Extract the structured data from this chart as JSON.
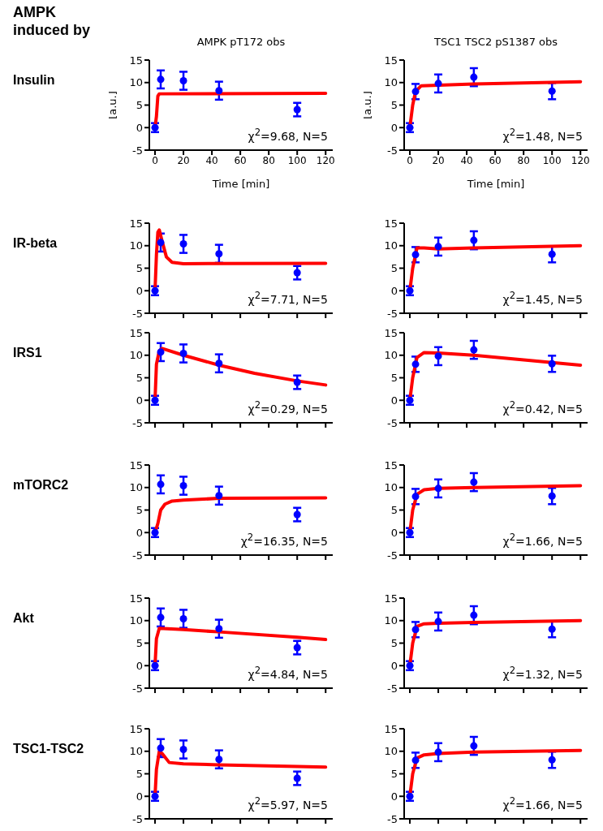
{
  "chart_data": [
    {
      "type": "scatter",
      "title": "AMPK pT172 obs",
      "xlabel": "Time [min]",
      "ylabel": "[a.u.]",
      "xlim": [
        -4,
        125
      ],
      "xticks": [
        0,
        20,
        40,
        60,
        80,
        100,
        120
      ],
      "ylim": [
        -5,
        15
      ],
      "yticks": [
        -5,
        0,
        5,
        10,
        15
      ],
      "annotations": [
        "χ$^{2}$=9.68, N=5",
        "Insulin",
        "AMPK induced by"
      ],
      "series": [
        {
          "marker": "circle",
          "color": "#0000ff",
          "x": [
            0,
            4,
            20,
            45,
            100
          ],
          "values": [
            0,
            10.7,
            10.4,
            8.2,
            4
          ],
          "errors": [
            1,
            2,
            2,
            2,
            1.5
          ]
        },
        {
          "type": "line",
          "color": "#ff0000",
          "x": [
            0,
            1,
            2,
            3,
            120
          ],
          "values": [
            0,
            2.5,
            7,
            7.5,
            7.6
          ]
        }
      ]
    },
    {
      "type": "scatter",
      "title": "TSC1 TSC2 pS1387 obs",
      "xlabel": "Time [min]",
      "ylabel": "[a.u.]",
      "xlim": [
        -4,
        125
      ],
      "xticks": [
        0,
        20,
        40,
        60,
        80,
        100,
        120
      ],
      "ylim": [
        -5,
        15
      ],
      "yticks": [
        -5,
        0,
        5,
        10,
        15
      ],
      "annotations": [
        "χ$^{2}$=1.48, N=5"
      ],
      "series": [
        {
          "marker": "circle",
          "color": "#0000ff",
          "x": [
            0,
            4,
            20,
            45,
            100
          ],
          "values": [
            0,
            8,
            9.8,
            11.2,
            8.1
          ],
          "errors": [
            1,
            1.7,
            2,
            2,
            1.8
          ]
        },
        {
          "type": "line",
          "color": "#ff0000",
          "x": [
            0,
            2,
            4,
            8,
            20,
            45,
            120
          ],
          "values": [
            0,
            5,
            8,
            9.3,
            9.4,
            9.7,
            10.2
          ]
        }
      ]
    },
    {
      "type": "scatter",
      "tick_labels": "y",
      "xlim": [
        -4,
        125
      ],
      "xticks": [
        0,
        20,
        40,
        60,
        80,
        100,
        120
      ],
      "ylim": [
        -5,
        15
      ],
      "yticks": [
        -5,
        0,
        5,
        10,
        15
      ],
      "annotations": [
        "χ$^{2}$=7.71, N=5",
        "IR-beta"
      ],
      "series": [
        {
          "marker": "circle",
          "color": "#0000ff",
          "x": [
            0,
            4,
            20,
            45,
            100
          ],
          "values": [
            0,
            10.7,
            10.4,
            8.2,
            4
          ],
          "errors": [
            1,
            2,
            2,
            2,
            1.5
          ]
        },
        {
          "type": "line",
          "color": "#ff0000",
          "x": [
            0,
            1,
            2,
            3,
            5,
            8,
            12,
            20,
            120
          ],
          "values": [
            0,
            8,
            13,
            13.5,
            11,
            7.5,
            6.3,
            6,
            6.1
          ]
        }
      ]
    },
    {
      "type": "scatter",
      "tick_labels": "y",
      "xlim": [
        -4,
        125
      ],
      "xticks": [
        0,
        20,
        40,
        60,
        80,
        100,
        120
      ],
      "ylim": [
        -5,
        15
      ],
      "yticks": [
        -5,
        0,
        5,
        10,
        15
      ],
      "annotations": [
        "χ$^{2}$=1.45, N=5"
      ],
      "series": [
        {
          "marker": "circle",
          "color": "#0000ff",
          "x": [
            0,
            4,
            20,
            45,
            100
          ],
          "values": [
            0,
            8,
            9.8,
            11.2,
            8.1
          ],
          "errors": [
            1,
            1.7,
            2,
            2,
            1.8
          ]
        },
        {
          "type": "line",
          "color": "#ff0000",
          "x": [
            0,
            2,
            5,
            10,
            20,
            45,
            120
          ],
          "values": [
            0,
            5,
            9.5,
            9.5,
            9.3,
            9.5,
            10
          ]
        }
      ]
    },
    {
      "type": "scatter",
      "tick_labels": "y",
      "xlim": [
        -4,
        125
      ],
      "xticks": [
        0,
        20,
        40,
        60,
        80,
        100,
        120
      ],
      "ylim": [
        -5,
        15
      ],
      "yticks": [
        -5,
        0,
        5,
        10,
        15
      ],
      "annotations": [
        "χ$^{2}$=0.29, N=5",
        "IRS1"
      ],
      "series": [
        {
          "marker": "circle",
          "color": "#0000ff",
          "x": [
            0,
            4,
            20,
            45,
            100
          ],
          "values": [
            0,
            10.7,
            10.4,
            8.2,
            4
          ],
          "errors": [
            1,
            2,
            2,
            2,
            1.5
          ]
        },
        {
          "type": "line",
          "color": "#ff0000",
          "x": [
            0,
            1,
            3,
            5,
            20,
            45,
            70,
            100,
            120
          ],
          "values": [
            0,
            8,
            11,
            11.5,
            10,
            7.8,
            6,
            4.3,
            3.4
          ]
        }
      ]
    },
    {
      "type": "scatter",
      "tick_labels": "y",
      "xlim": [
        -4,
        125
      ],
      "xticks": [
        0,
        20,
        40,
        60,
        80,
        100,
        120
      ],
      "ylim": [
        -5,
        15
      ],
      "yticks": [
        -5,
        0,
        5,
        10,
        15
      ],
      "annotations": [
        "χ$^{2}$=0.42, N=5"
      ],
      "series": [
        {
          "marker": "circle",
          "color": "#0000ff",
          "x": [
            0,
            4,
            20,
            45,
            100
          ],
          "values": [
            0,
            8,
            9.8,
            11.2,
            8.1
          ],
          "errors": [
            1,
            1.7,
            2,
            2,
            1.8
          ]
        },
        {
          "type": "line",
          "color": "#ff0000",
          "x": [
            0,
            2,
            5,
            10,
            20,
            45,
            120
          ],
          "values": [
            0,
            5,
            9.5,
            10.6,
            10.5,
            10,
            7.8
          ]
        }
      ]
    },
    {
      "type": "scatter",
      "tick_labels": "y",
      "xlim": [
        -4,
        125
      ],
      "xticks": [
        0,
        20,
        40,
        60,
        80,
        100,
        120
      ],
      "ylim": [
        -5,
        15
      ],
      "yticks": [
        -5,
        0,
        5,
        10,
        15
      ],
      "annotations": [
        "χ$^{2}$=16.35, N=5",
        "mTORC2"
      ],
      "series": [
        {
          "marker": "circle",
          "color": "#0000ff",
          "x": [
            0,
            4,
            20,
            45,
            100
          ],
          "values": [
            0,
            10.7,
            10.4,
            8.2,
            4
          ],
          "errors": [
            1,
            2,
            2,
            2,
            1.5
          ]
        },
        {
          "type": "line",
          "color": "#ff0000",
          "x": [
            0,
            2,
            4,
            7,
            12,
            20,
            45,
            120
          ],
          "values": [
            0,
            2,
            5,
            6.3,
            7,
            7.2,
            7.6,
            7.7
          ]
        }
      ]
    },
    {
      "type": "scatter",
      "tick_labels": "y",
      "xlim": [
        -4,
        125
      ],
      "xticks": [
        0,
        20,
        40,
        60,
        80,
        100,
        120
      ],
      "ylim": [
        -5,
        15
      ],
      "yticks": [
        -5,
        0,
        5,
        10,
        15
      ],
      "annotations": [
        "χ$^{2}$=1.66, N=5"
      ],
      "series": [
        {
          "marker": "circle",
          "color": "#0000ff",
          "x": [
            0,
            4,
            20,
            45,
            100
          ],
          "values": [
            0,
            8,
            9.8,
            11.2,
            8.1
          ],
          "errors": [
            1,
            1.7,
            2,
            2,
            1.8
          ]
        },
        {
          "type": "line",
          "color": "#ff0000",
          "x": [
            0,
            2,
            5,
            10,
            20,
            45,
            120
          ],
          "values": [
            0,
            5,
            8.5,
            9.5,
            9.8,
            10,
            10.4
          ]
        }
      ]
    },
    {
      "type": "scatter",
      "tick_labels": "y",
      "xlim": [
        -4,
        125
      ],
      "xticks": [
        0,
        20,
        40,
        60,
        80,
        100,
        120
      ],
      "ylim": [
        -5,
        15
      ],
      "yticks": [
        -5,
        0,
        5,
        10,
        15
      ],
      "annotations": [
        "χ$^{2}$=4.84, N=5",
        "Akt"
      ],
      "series": [
        {
          "marker": "circle",
          "color": "#0000ff",
          "x": [
            0,
            4,
            20,
            45,
            100
          ],
          "values": [
            0,
            10.7,
            10.4,
            8.2,
            4
          ],
          "errors": [
            1,
            2,
            2,
            2,
            1.5
          ]
        },
        {
          "type": "line",
          "color": "#ff0000",
          "x": [
            0,
            1,
            3,
            20,
            45,
            100,
            120
          ],
          "values": [
            0,
            6,
            8.3,
            8,
            7.5,
            6.3,
            5.8
          ]
        }
      ]
    },
    {
      "type": "scatter",
      "tick_labels": "y",
      "xlim": [
        -4,
        125
      ],
      "xticks": [
        0,
        20,
        40,
        60,
        80,
        100,
        120
      ],
      "ylim": [
        -5,
        15
      ],
      "yticks": [
        -5,
        0,
        5,
        10,
        15
      ],
      "annotations": [
        "χ$^{2}$=1.32, N=5"
      ],
      "series": [
        {
          "marker": "circle",
          "color": "#0000ff",
          "x": [
            0,
            4,
            20,
            45,
            100
          ],
          "values": [
            0,
            8,
            9.8,
            11.2,
            8.1
          ],
          "errors": [
            1,
            1.7,
            2,
            2,
            1.8
          ]
        },
        {
          "type": "line",
          "color": "#ff0000",
          "x": [
            0,
            2,
            5,
            10,
            20,
            45,
            120
          ],
          "values": [
            0,
            5,
            8.7,
            9.3,
            9.4,
            9.6,
            10
          ]
        }
      ]
    },
    {
      "type": "scatter",
      "tick_labels": "y",
      "xlim": [
        -4,
        125
      ],
      "xticks": [
        0,
        20,
        40,
        60,
        80,
        100,
        120
      ],
      "ylim": [
        -5,
        15
      ],
      "yticks": [
        -5,
        0,
        5,
        10,
        15
      ],
      "annotations": [
        "χ$^{2}$=5.97, N=5",
        "TSC1-TSC2"
      ],
      "series": [
        {
          "marker": "circle",
          "color": "#0000ff",
          "x": [
            0,
            4,
            20,
            45,
            100
          ],
          "values": [
            0,
            10.7,
            10.4,
            8.2,
            4
          ],
          "errors": [
            1,
            2,
            2,
            2,
            1.5
          ]
        },
        {
          "type": "line",
          "color": "#ff0000",
          "x": [
            0,
            1,
            3,
            5,
            10,
            20,
            45,
            100,
            120
          ],
          "values": [
            0,
            6,
            10,
            9.5,
            7.5,
            7.2,
            7,
            6.6,
            6.5
          ]
        }
      ]
    },
    {
      "type": "scatter",
      "tick_labels": "y",
      "xlim": [
        -4,
        125
      ],
      "xticks": [
        0,
        20,
        40,
        60,
        80,
        100,
        120
      ],
      "ylim": [
        -5,
        15
      ],
      "yticks": [
        -5,
        0,
        5,
        10,
        15
      ],
      "annotations": [
        "χ$^{2}$=1.66, N=5"
      ],
      "series": [
        {
          "marker": "circle",
          "color": "#0000ff",
          "x": [
            0,
            4,
            20,
            45,
            100
          ],
          "values": [
            0,
            8,
            9.8,
            11.2,
            8.1
          ],
          "errors": [
            1,
            1.7,
            2,
            2,
            1.8
          ]
        },
        {
          "type": "line",
          "color": "#ff0000",
          "x": [
            0,
            2,
            5,
            10,
            20,
            45,
            120
          ],
          "values": [
            0,
            5,
            8.5,
            9.2,
            9.5,
            9.8,
            10.2
          ]
        }
      ]
    }
  ]
}
